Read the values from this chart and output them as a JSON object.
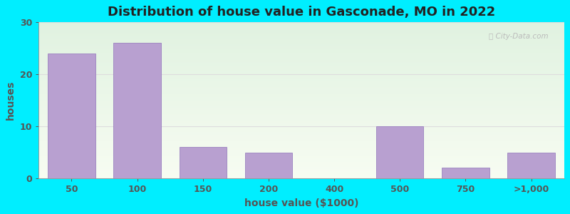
{
  "title": "Distribution of house value in Gasconade, MO in 2022",
  "xlabel": "house value ($1000)",
  "ylabel": "houses",
  "categories": [
    "50",
    "100",
    "150",
    "200",
    "400",
    "500",
    "750",
    ">1,000"
  ],
  "values": [
    24,
    26,
    6,
    5,
    0,
    10,
    2,
    5
  ],
  "bar_color": "#b8a0d0",
  "bar_edge_color": "#9b82c0",
  "background_outer": "#00eeff",
  "plot_bg": "#edf5ec",
  "title_color": "#222222",
  "label_color": "#555555",
  "tick_color": "#555555",
  "ylim": [
    0,
    30
  ],
  "yticks": [
    0,
    10,
    20,
    30
  ],
  "grid_color": "#dddddd",
  "title_fontsize": 13,
  "axis_fontsize": 10,
  "tick_fontsize": 9
}
